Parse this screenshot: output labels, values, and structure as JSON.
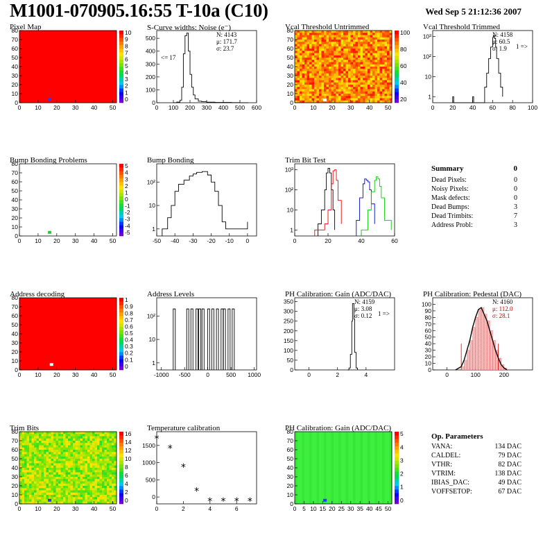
{
  "header": {
    "title": "M1001-070905.16:55 T-10a (C10)",
    "datetime": "Wed Sep  5 21:12:36 2007"
  },
  "chart_data": [
    {
      "id": "pixel-map",
      "type": "heatmap",
      "title": "Pixel Map",
      "xlim": [
        0,
        52
      ],
      "ylim": [
        0,
        80
      ],
      "xticks": [
        0,
        10,
        20,
        30,
        40,
        50
      ],
      "yticks": [
        0,
        10,
        20,
        30,
        40,
        50,
        60,
        70,
        80
      ],
      "zlim": [
        0,
        10
      ],
      "zticks": [
        "0",
        "1",
        "2",
        "3",
        "4",
        "5",
        "6",
        "7",
        "8",
        "9",
        "10"
      ],
      "fill": "uniform-high",
      "hot_pixels": [
        {
          "x": 16,
          "y": 4,
          "color": "blue"
        }
      ]
    },
    {
      "id": "scurve-noise",
      "type": "line",
      "title": "S-Curve widths: Noise (e⁻)",
      "xlim": [
        0,
        600
      ],
      "ylim": [
        0,
        560
      ],
      "xticks": [
        0,
        100,
        200,
        300,
        400,
        500,
        600
      ],
      "yticks": [
        0,
        100,
        200,
        300,
        400,
        500
      ],
      "stats": [
        "N: 4143",
        "μ: 171.7",
        "σ: 23.7"
      ],
      "annotation": "<= 17",
      "x": [
        100,
        120,
        140,
        150,
        160,
        170,
        180,
        190,
        200,
        210,
        220,
        230,
        250,
        270,
        300,
        350,
        400,
        450,
        500,
        550
      ],
      "y": [
        0,
        5,
        20,
        120,
        380,
        520,
        540,
        400,
        220,
        120,
        60,
        30,
        12,
        8,
        4,
        2,
        2,
        1,
        0,
        0
      ]
    },
    {
      "id": "vcal-untrimmed",
      "type": "heatmap",
      "title": "Vcal Threshold Untrimmed",
      "xlim": [
        0,
        52
      ],
      "ylim": [
        0,
        80
      ],
      "xticks": [
        0,
        10,
        20,
        30,
        40,
        50
      ],
      "yticks": [
        0,
        10,
        20,
        30,
        40,
        50,
        60,
        70,
        80
      ],
      "zlim": [
        0,
        120
      ],
      "zticks": [
        "20",
        "40",
        "60",
        "80",
        "100"
      ],
      "fill": "noisy-orange-yellow",
      "hot_pixels": [
        {
          "x": 16,
          "y": 3,
          "color": "white"
        }
      ]
    },
    {
      "id": "vcal-trimmed",
      "type": "line",
      "title": "Vcal Threshold Trimmed",
      "log_y": true,
      "xlim": [
        0,
        100
      ],
      "ylim": [
        0.5,
        2000
      ],
      "xticks": [
        0,
        20,
        40,
        60,
        80,
        100
      ],
      "yticks": [
        "1",
        "10",
        "10²",
        "10³"
      ],
      "stats": [
        "N: 4158",
        "μ: 60.5",
        "σ:  1.9"
      ],
      "annotation": "1 =>",
      "x": [
        20,
        21,
        40,
        41,
        52,
        54,
        56,
        58,
        60,
        61,
        62,
        63,
        64,
        66,
        68,
        70
      ],
      "y": [
        1,
        0,
        1,
        0,
        3,
        15,
        80,
        300,
        900,
        1100,
        800,
        300,
        80,
        15,
        3,
        1
      ]
    },
    {
      "id": "bump-problems",
      "type": "heatmap",
      "title": "Bump Bonding Problems",
      "xlim": [
        0,
        52
      ],
      "ylim": [
        0,
        80
      ],
      "xticks": [
        0,
        10,
        20,
        30,
        40,
        50
      ],
      "yticks": [
        0,
        10,
        20,
        30,
        40,
        50,
        60,
        70,
        80
      ],
      "zlim": [
        -5,
        5
      ],
      "zticks": [
        "-5",
        "-4",
        "-3",
        "-2",
        "-1",
        "0",
        "1",
        "2",
        "3",
        "4",
        "5"
      ],
      "fill": "empty",
      "hot_pixels": [
        {
          "x": 16,
          "y": 4,
          "color": "green"
        }
      ]
    },
    {
      "id": "bump-bonding",
      "type": "line",
      "title": "Bump Bonding",
      "log_y": true,
      "xlim": [
        -50,
        5
      ],
      "ylim": [
        0.5,
        600
      ],
      "xticks": [
        -50,
        -40,
        -30,
        -20,
        -10,
        0
      ],
      "yticks": [
        "1",
        "10",
        "10²"
      ],
      "x": [
        -47,
        -44,
        -42,
        -40,
        -38,
        -35,
        -32,
        -30,
        -28,
        -25,
        -22,
        -20,
        -18,
        -16,
        -14,
        -12,
        0
      ],
      "y": [
        1,
        3,
        10,
        40,
        80,
        120,
        180,
        220,
        260,
        280,
        200,
        100,
        40,
        10,
        2,
        1,
        2
      ]
    },
    {
      "id": "trim-bit-test",
      "type": "line",
      "title": "Trim Bit Test",
      "log_y": true,
      "xlim": [
        0,
        60
      ],
      "ylim": [
        0.5,
        2000
      ],
      "xticks": [
        0,
        20,
        40,
        60
      ],
      "yticks": [
        "1",
        "10",
        "10²",
        "10³"
      ],
      "series": [
        {
          "color": "#000",
          "x": [
            14,
            16,
            18,
            19,
            20,
            21,
            22,
            23,
            24
          ],
          "y": [
            2,
            10,
            100,
            700,
            1200,
            700,
            100,
            10,
            1
          ]
        },
        {
          "color": "#e00",
          "x": [
            12,
            18,
            20,
            22,
            23,
            24,
            25,
            26,
            28
          ],
          "y": [
            1,
            2,
            10,
            200,
            900,
            1000,
            300,
            30,
            2
          ]
        },
        {
          "color": "#00c",
          "x": [
            37,
            39,
            41,
            42,
            43,
            44,
            45,
            46,
            48
          ],
          "y": [
            3,
            40,
            200,
            350,
            300,
            250,
            100,
            20,
            2
          ]
        },
        {
          "color": "#0c0",
          "x": [
            40,
            44,
            46,
            48,
            49,
            50,
            51,
            52,
            54,
            58
          ],
          "y": [
            1,
            10,
            80,
            300,
            450,
            350,
            150,
            40,
            3,
            1
          ]
        }
      ]
    },
    {
      "id": "address-decoding",
      "type": "heatmap",
      "title": "Address decoding",
      "xlim": [
        0,
        52
      ],
      "ylim": [
        0,
        80
      ],
      "xticks": [
        0,
        10,
        20,
        30,
        40,
        50
      ],
      "yticks": [
        0,
        10,
        20,
        30,
        40,
        50,
        60,
        70,
        80
      ],
      "zlim": [
        0,
        1
      ],
      "zticks": [
        "0",
        "0.1",
        "0.2",
        "0.3",
        "0.4",
        "0.5",
        "0.6",
        "0.7",
        "0.8",
        "0.9",
        "1"
      ],
      "fill": "uniform-high",
      "hot_pixels": [
        {
          "x": 17,
          "y": 6,
          "color": "white"
        }
      ]
    },
    {
      "id": "address-levels",
      "type": "line",
      "title": "Address Levels",
      "log_y": true,
      "xlim": [
        -1100,
        1050
      ],
      "ylim": [
        0.5,
        600
      ],
      "xticks": [
        -1000,
        -500,
        0,
        500,
        1000
      ],
      "yticks": [
        "1",
        "10",
        "10²"
      ],
      "peaks": [
        -700,
        -410,
        -320,
        -210,
        -150,
        -80,
        40,
        130,
        230,
        330,
        380,
        480,
        570
      ],
      "peak_height": 200
    },
    {
      "id": "ph-gain",
      "type": "line",
      "title": "PH Calibration: Gain (ADC/DAC)",
      "xlim": [
        -1,
        6
      ],
      "ylim": [
        0,
        370
      ],
      "xticks": [
        0,
        2,
        4
      ],
      "yticks": [
        0,
        50,
        100,
        150,
        200,
        250,
        300,
        350
      ],
      "stats": [
        "N: 4159",
        "μ: 3.08",
        "σ: 0.12"
      ],
      "annotation": "1 =>",
      "x": [
        2.7,
        2.8,
        2.9,
        3.0,
        3.05,
        3.1,
        3.15,
        3.2,
        3.3,
        3.4
      ],
      "y": [
        0,
        10,
        80,
        250,
        340,
        340,
        260,
        90,
        10,
        0
      ]
    },
    {
      "id": "ph-pedestal",
      "type": "line",
      "title": "PH Calibration: Pedestal (DAC)",
      "xlim": [
        -50,
        300
      ],
      "ylim": [
        0,
        110
      ],
      "xticks": [
        0,
        100,
        200
      ],
      "yticks": [
        0,
        10,
        20,
        30,
        40,
        50,
        60,
        70,
        80,
        90,
        100
      ],
      "stats": [
        "N: 4160",
        "μ: 112.0",
        "σ: 28.1"
      ],
      "x": [
        30,
        50,
        60,
        70,
        80,
        90,
        100,
        110,
        120,
        130,
        140,
        150,
        160,
        170,
        180,
        190,
        200,
        210
      ],
      "y": [
        0,
        5,
        15,
        30,
        45,
        65,
        80,
        92,
        95,
        85,
        75,
        60,
        45,
        30,
        18,
        8,
        3,
        0
      ]
    },
    {
      "id": "trim-bits",
      "type": "heatmap",
      "title": "Trim Bits",
      "xlim": [
        0,
        52
      ],
      "ylim": [
        0,
        80
      ],
      "xticks": [
        0,
        10,
        20,
        30,
        40,
        50
      ],
      "yticks": [
        0,
        10,
        20,
        30,
        40,
        50,
        60,
        70,
        80
      ],
      "zlim": [
        0,
        16
      ],
      "zticks": [
        "0",
        "2",
        "4",
        "6",
        "8",
        "10",
        "12",
        "14",
        "16"
      ],
      "fill": "noisy-green-yellow",
      "hot_pixels": [
        {
          "x": 16,
          "y": 4,
          "color": "blue"
        }
      ]
    },
    {
      "id": "temperature",
      "type": "scatter",
      "title": "Temperature calibration",
      "xlim": [
        0,
        7.5
      ],
      "ylim": [
        -200,
        1900
      ],
      "xticks": [
        0,
        2,
        4,
        6
      ],
      "yticks": [
        0,
        500,
        1000,
        1500
      ],
      "x": [
        0,
        1,
        2,
        3,
        4,
        5,
        6,
        7
      ],
      "y": [
        1700,
        1420,
        870,
        170,
        -120,
        -120,
        -120,
        -120
      ]
    },
    {
      "id": "ph-gain-map",
      "type": "heatmap",
      "title": "PH Calibration: Gain (ADC/DAC)",
      "xlim": [
        0,
        52
      ],
      "ylim": [
        0,
        80
      ],
      "xticks": [
        0,
        5,
        10,
        15,
        20,
        25,
        30,
        35,
        40,
        45,
        50
      ],
      "yticks": [
        0,
        10,
        20,
        30,
        40,
        50,
        60,
        70,
        80
      ],
      "zlim": [
        0,
        6
      ],
      "zticks": [
        "0",
        "1",
        "2",
        "3",
        "4",
        "5"
      ],
      "fill": "uniform-green",
      "hot_pixels": [
        {
          "x": 16,
          "y": 4,
          "color": "blue"
        }
      ]
    }
  ],
  "summary": {
    "title": "Summary",
    "value": "0",
    "rows": [
      {
        "label": "Dead Pixels:",
        "value": "0"
      },
      {
        "label": "Noisy Pixels:",
        "value": "0"
      },
      {
        "label": "Mask defects:",
        "value": "0"
      },
      {
        "label": "Dead Bumps:",
        "value": "3"
      },
      {
        "label": "Dead Trimbits:",
        "value": "7"
      },
      {
        "label": "Address Probl:",
        "value": "3"
      }
    ]
  },
  "params": {
    "title": "Op. Parameters",
    "rows": [
      {
        "label": "VANA:",
        "value": "134 DAC"
      },
      {
        "label": "CALDEL:",
        "value": "79 DAC"
      },
      {
        "label": "VTHR:",
        "value": "82 DAC"
      },
      {
        "label": "VTRIM:",
        "value": "138 DAC"
      },
      {
        "label": "IBIAS_DAC:",
        "value": "49 DAC"
      },
      {
        "label": "VOFFSETOP:",
        "value": "67 DAC"
      }
    ]
  },
  "colors": {
    "heat_high": "#ff0000",
    "heat_orange": "#ff8c1a",
    "heat_yellow": "#f5e400",
    "heat_green": "#3ee83e",
    "pedestal_stats": "#d00000"
  }
}
